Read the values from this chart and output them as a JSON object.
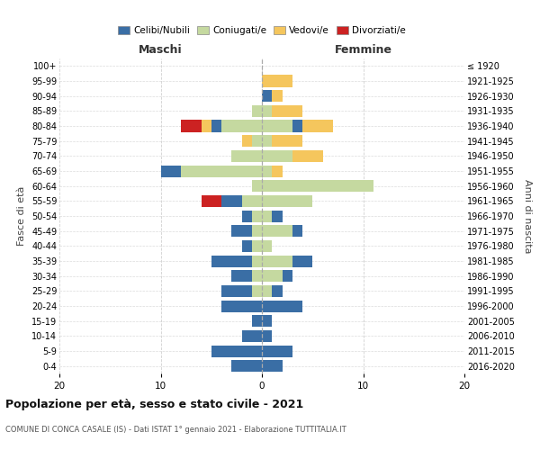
{
  "age_groups": [
    "0-4",
    "5-9",
    "10-14",
    "15-19",
    "20-24",
    "25-29",
    "30-34",
    "35-39",
    "40-44",
    "45-49",
    "50-54",
    "55-59",
    "60-64",
    "65-69",
    "70-74",
    "75-79",
    "80-84",
    "85-89",
    "90-94",
    "95-99",
    "100+"
  ],
  "birth_years": [
    "2016-2020",
    "2011-2015",
    "2006-2010",
    "2001-2005",
    "1996-2000",
    "1991-1995",
    "1986-1990",
    "1981-1985",
    "1976-1980",
    "1971-1975",
    "1966-1970",
    "1961-1965",
    "1956-1960",
    "1951-1955",
    "1946-1950",
    "1941-1945",
    "1936-1940",
    "1931-1935",
    "1926-1930",
    "1921-1925",
    "≤ 1920"
  ],
  "maschi": {
    "celibe": [
      3,
      5,
      2,
      1,
      4,
      3,
      2,
      4,
      1,
      2,
      1,
      2,
      0,
      2,
      0,
      0,
      1,
      0,
      0,
      0,
      0
    ],
    "coniugato": [
      0,
      0,
      0,
      0,
      0,
      1,
      1,
      1,
      1,
      1,
      1,
      2,
      1,
      8,
      3,
      1,
      4,
      1,
      0,
      0,
      0
    ],
    "vedovo": [
      0,
      0,
      0,
      0,
      0,
      0,
      0,
      0,
      0,
      0,
      0,
      0,
      0,
      0,
      0,
      1,
      1,
      0,
      0,
      0,
      0
    ],
    "divorziato": [
      0,
      0,
      0,
      0,
      0,
      0,
      0,
      0,
      0,
      0,
      0,
      2,
      0,
      0,
      0,
      0,
      2,
      0,
      0,
      0,
      0
    ]
  },
  "femmine": {
    "nubile": [
      2,
      3,
      1,
      1,
      4,
      1,
      1,
      2,
      0,
      1,
      1,
      0,
      0,
      0,
      0,
      0,
      1,
      0,
      1,
      0,
      0
    ],
    "coniugata": [
      0,
      0,
      0,
      0,
      0,
      1,
      2,
      3,
      1,
      3,
      1,
      5,
      11,
      1,
      3,
      1,
      3,
      1,
      0,
      0,
      0
    ],
    "vedova": [
      0,
      0,
      0,
      0,
      0,
      0,
      0,
      0,
      0,
      0,
      0,
      0,
      0,
      1,
      3,
      3,
      3,
      3,
      1,
      3,
      0
    ],
    "divorziata": [
      0,
      0,
      0,
      0,
      0,
      0,
      0,
      0,
      0,
      0,
      0,
      0,
      0,
      0,
      0,
      0,
      0,
      0,
      0,
      0,
      0
    ]
  },
  "colors": {
    "celibe_nubile": "#3a6ea5",
    "coniugato": "#c5d9a0",
    "vedovo": "#f5c65d",
    "divorziato": "#cc2222"
  },
  "title": "Popolazione per età, sesso e stato civile - 2021",
  "subtitle": "COMUNE DI CONCA CASALE (IS) - Dati ISTAT 1° gennaio 2021 - Elaborazione TUTTITALIA.IT",
  "xlabel_left": "Maschi",
  "xlabel_right": "Femmine",
  "ylabel_left": "Fasce di età",
  "ylabel_right": "Anni di nascita",
  "xlim": 20,
  "legend_labels": [
    "Celibi/Nubili",
    "Coniugati/e",
    "Vedovi/e",
    "Divorziati/e"
  ],
  "background_color": "#ffffff",
  "grid_color": "#cccccc"
}
